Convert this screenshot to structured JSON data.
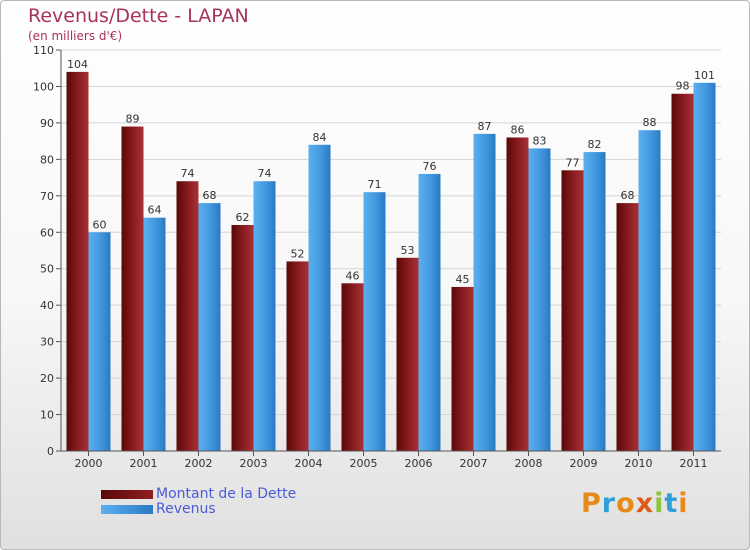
{
  "title": "Revenus/Dette - LAPAN",
  "subtitle": "(en milliers d'€)",
  "legend": [
    {
      "label": "Montant de la Dette",
      "color": "#8b1a1a"
    },
    {
      "label": "Revenus",
      "color": "#4da3e8"
    }
  ],
  "logo": {
    "text": "Proxiti",
    "colors": [
      "#e88a1a",
      "#2f9fd8",
      "#e88a1a",
      "#e05a1a",
      "#8cc63f",
      "#2f9fd8",
      "#e88a1a"
    ]
  },
  "chart_data": {
    "type": "bar",
    "categories": [
      "2000",
      "2001",
      "2002",
      "2003",
      "2004",
      "2005",
      "2006",
      "2007",
      "2008",
      "2009",
      "2010",
      "2011"
    ],
    "series": [
      {
        "name": "Montant de la Dette",
        "values": [
          104,
          89,
          74,
          62,
          52,
          46,
          53,
          45,
          86,
          77,
          68,
          98
        ]
      },
      {
        "name": "Revenus",
        "values": [
          60,
          64,
          68,
          74,
          84,
          71,
          76,
          87,
          83,
          82,
          88,
          101
        ]
      }
    ],
    "ylim": [
      0,
      110
    ],
    "yticks": [
      0,
      10,
      20,
      30,
      40,
      50,
      60,
      70,
      80,
      90,
      100,
      110
    ],
    "grid": true
  }
}
